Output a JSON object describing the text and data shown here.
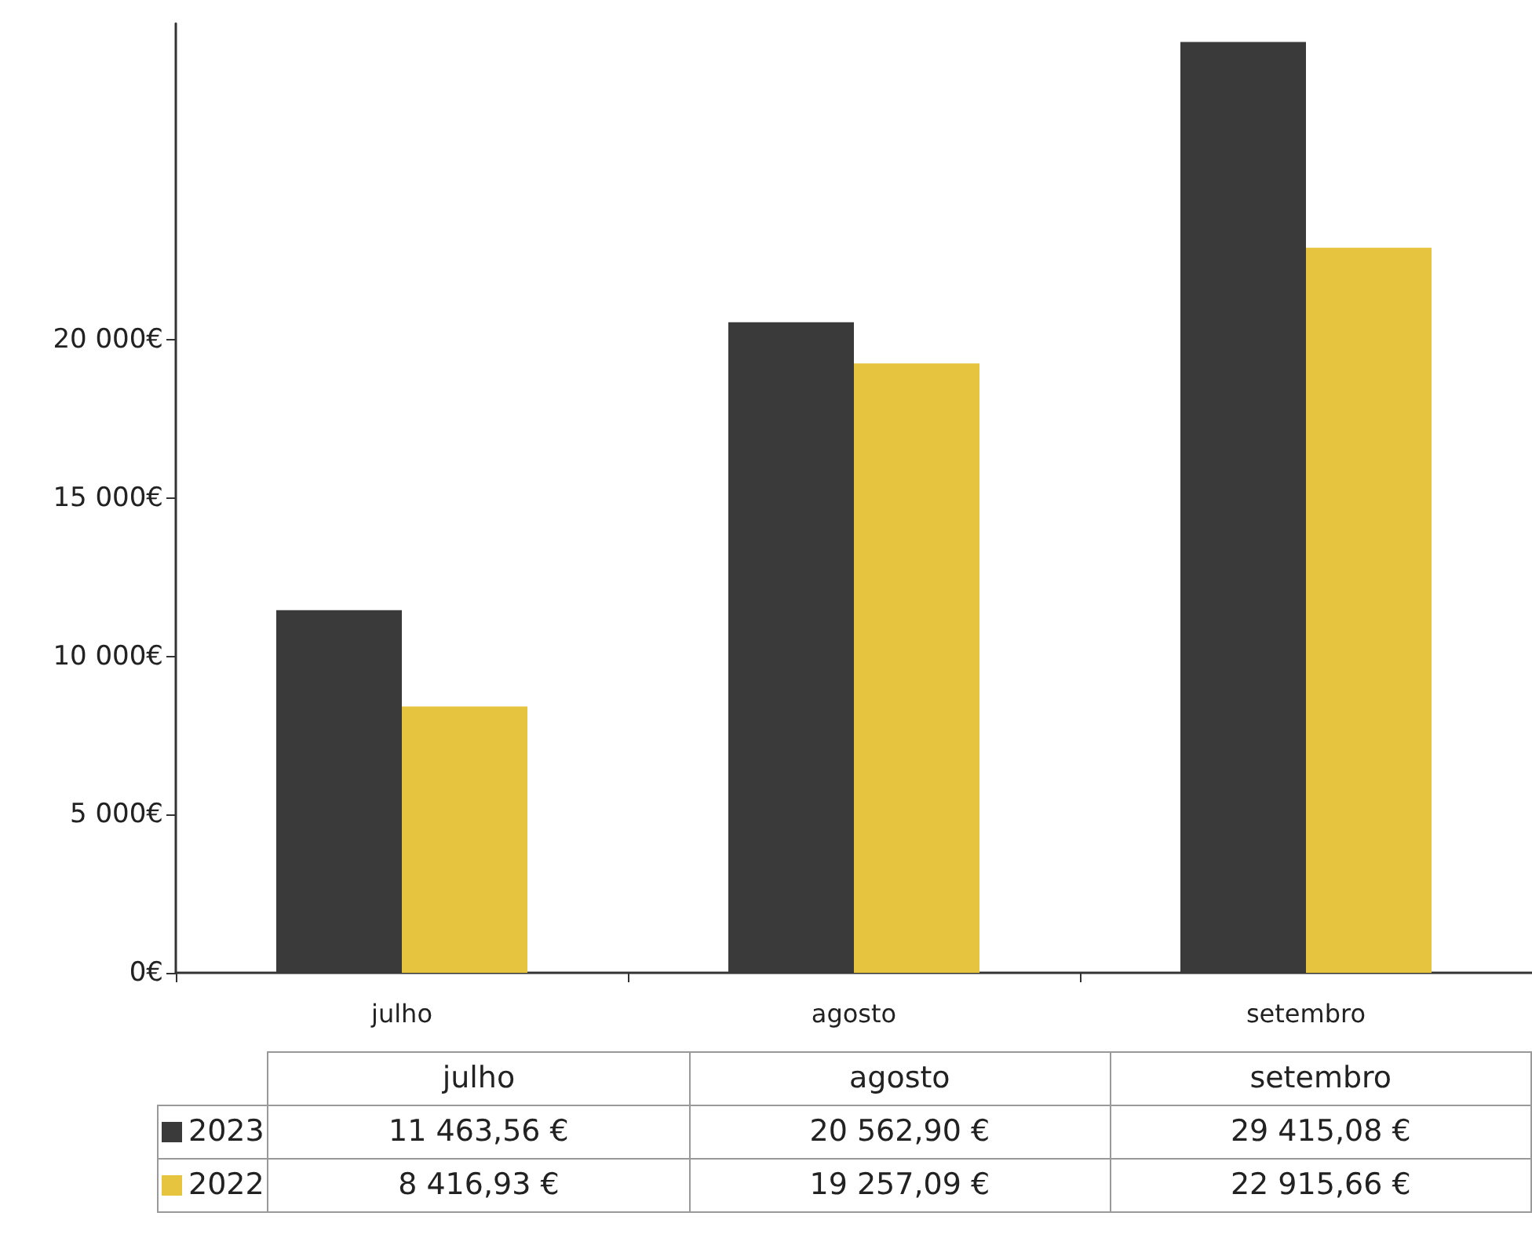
{
  "chart_data": {
    "type": "bar",
    "categories": [
      "julho",
      "agosto",
      "setembro"
    ],
    "series": [
      {
        "name": "2023",
        "color": "#3a3a3a",
        "values": [
          11463.56,
          20562.9,
          29415.08
        ],
        "value_labels": [
          "11 463,56 €",
          "20 562,90 €",
          "29 415,08 €"
        ]
      },
      {
        "name": "2022",
        "color": "#e6c440",
        "values": [
          8416.93,
          19257.09,
          22915.66
        ],
        "value_labels": [
          "8 416,93 €",
          "19 257,09 €",
          "22 915,66 €"
        ]
      }
    ],
    "ylim": [
      0,
      30000
    ],
    "yticks": [
      {
        "value": 0,
        "label": "0€"
      },
      {
        "value": 5000,
        "label": "5 000€"
      },
      {
        "value": 10000,
        "label": "10 000€"
      },
      {
        "value": 15000,
        "label": "15 000€"
      },
      {
        "value": 20000,
        "label": "20 000€"
      }
    ],
    "grid": false,
    "legend": "bottom"
  }
}
